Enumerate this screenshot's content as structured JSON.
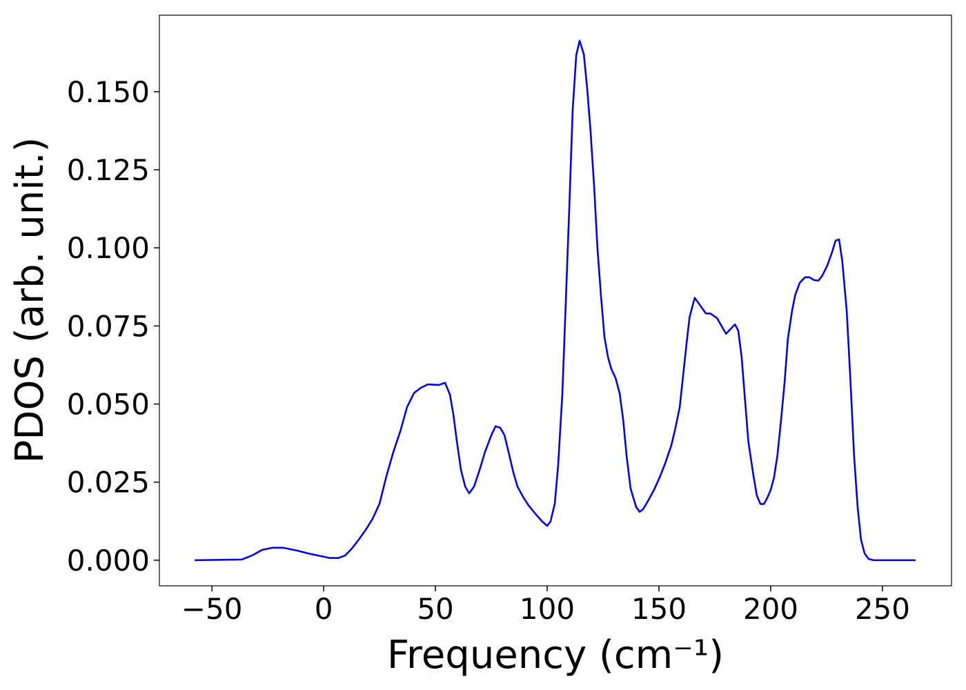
{
  "chart_data": {
    "type": "line",
    "xlabel": "Frequency (cm⁻¹)",
    "ylabel": "PDOS (arb. unit.)",
    "xlim": [
      -73.5,
      280.9
    ],
    "ylim": [
      -0.0082,
      0.1745
    ],
    "xticks": [
      {
        "value": -50,
        "label": "−50"
      },
      0,
      50,
      100,
      150,
      200,
      250
    ],
    "yticks": [
      {
        "value": 0,
        "label": "0.000"
      },
      {
        "value": 0.025,
        "label": "0.025"
      },
      {
        "value": 0.05,
        "label": "0.050"
      },
      {
        "value": 0.075,
        "label": "0.075"
      },
      {
        "value": 0.1,
        "label": "0.100"
      },
      {
        "value": 0.125,
        "label": "0.125"
      },
      {
        "value": 0.15,
        "label": "0.150"
      }
    ],
    "grid": false,
    "series": [
      {
        "color": "#0000ee",
        "x": [
          -57.7,
          -36.7,
          -32.1,
          -27.5,
          -22.8,
          -18.2,
          -12,
          -5.9,
          -1.2,
          2.8,
          6.5,
          9.6,
          12.7,
          15.7,
          18.8,
          21.9,
          25,
          28.1,
          31.2,
          34.3,
          37.3,
          40.4,
          43.5,
          46.6,
          51.5,
          54.3,
          56.5,
          58,
          59.6,
          61.4,
          63.3,
          65.1,
          67.3,
          69.8,
          72.2,
          75,
          76.9,
          79,
          80.9,
          82.7,
          84.9,
          86.7,
          89.2,
          91.7,
          94.8,
          97.5,
          100,
          101.5,
          103.4,
          104.9,
          106.8,
          108.3,
          109.9,
          111.4,
          113,
          114.5,
          116.4,
          117.9,
          119.4,
          121,
          122.5,
          124.1,
          125.6,
          127.2,
          128.7,
          130.6,
          132.4,
          134,
          135.5,
          137.3,
          139.8,
          141.4,
          142.9,
          144.8,
          147.8,
          150.6,
          153,
          155.6,
          157.4,
          159.3,
          160.8,
          162.3,
          163.7,
          166,
          171,
          173,
          176,
          180,
          184,
          185.5,
          187,
          190,
          192.3,
          193.8,
          195.4,
          197,
          198.5,
          200,
          201.5,
          203,
          204.6,
          206.2,
          207.7,
          209.6,
          211,
          213,
          215.4,
          217.3,
          219.4,
          221.3,
          223,
          225.3,
          227.5,
          229,
          230.6,
          232,
          234,
          235.5,
          237.3,
          238.9,
          240.4,
          242,
          243.8,
          246,
          264.8
        ],
        "values": [
          0,
          0.0002,
          0.0015,
          0.0033,
          0.004,
          0.004,
          0.0031,
          0.002,
          0.0013,
          0.0007,
          0.0007,
          0.0015,
          0.0038,
          0.0066,
          0.0097,
          0.0133,
          0.0181,
          0.027,
          0.0347,
          0.0413,
          0.049,
          0.0535,
          0.0552,
          0.0563,
          0.0561,
          0.0568,
          0.053,
          0.0468,
          0.038,
          0.029,
          0.0236,
          0.0214,
          0.0236,
          0.029,
          0.0347,
          0.04,
          0.0429,
          0.0424,
          0.04,
          0.0347,
          0.028,
          0.0236,
          0.0203,
          0.0175,
          0.0148,
          0.0126,
          0.011,
          0.0124,
          0.0181,
          0.0303,
          0.0535,
          0.0822,
          0.113,
          0.144,
          0.1617,
          0.1663,
          0.162,
          0.151,
          0.1374,
          0.1197,
          0.0998,
          0.0844,
          0.0716,
          0.065,
          0.0612,
          0.0583,
          0.0535,
          0.045,
          0.0336,
          0.023,
          0.017,
          0.0155,
          0.0163,
          0.0186,
          0.0225,
          0.027,
          0.0314,
          0.0369,
          0.0424,
          0.049,
          0.059,
          0.069,
          0.0778,
          0.084,
          0.079,
          0.079,
          0.0775,
          0.0725,
          0.0755,
          0.0735,
          0.065,
          0.038,
          0.027,
          0.0207,
          0.018,
          0.018,
          0.02,
          0.0225,
          0.0265,
          0.0335,
          0.0446,
          0.0568,
          0.071,
          0.08,
          0.085,
          0.0888,
          0.0906,
          0.0906,
          0.0897,
          0.0895,
          0.091,
          0.0943,
          0.0987,
          0.1023,
          0.1027,
          0.0959,
          0.08,
          0.06,
          0.0336,
          0.017,
          0.0066,
          0.0022,
          0.0004,
          0,
          0
        ]
      }
    ]
  }
}
